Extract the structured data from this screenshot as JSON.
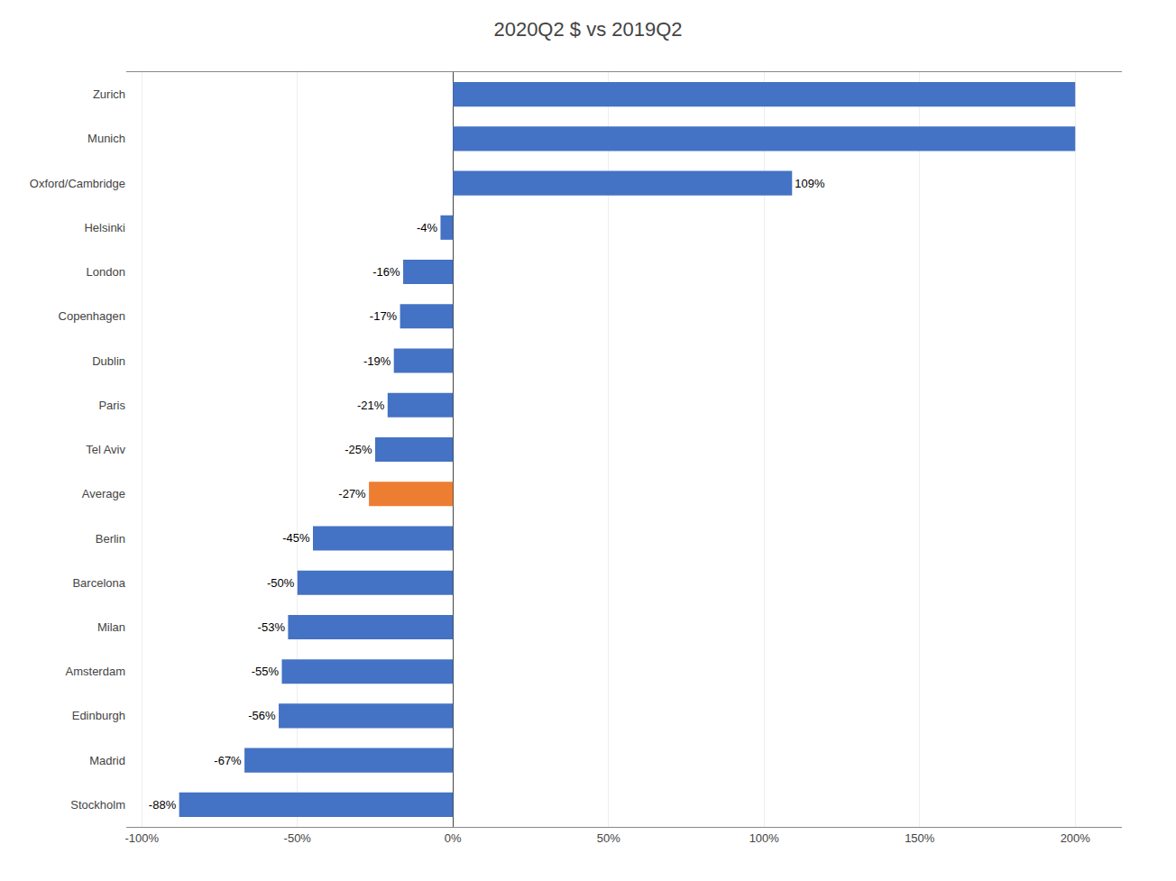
{
  "chart_data": {
    "type": "bar",
    "orientation": "horizontal",
    "title": "2020Q2 $ vs 2019Q2",
    "categories": [
      "Stockholm",
      "Madrid",
      "Edinburgh",
      "Amsterdam",
      "Milan",
      "Barcelona",
      "Berlin",
      "Average",
      "Tel Aviv",
      "Paris",
      "Dublin",
      "Copenhagen",
      "London",
      "Helsinki",
      "Oxford/Cambridge",
      "Munich",
      "Zurich"
    ],
    "values": [
      -88,
      -67,
      -56,
      -55,
      -53,
      -50,
      -45,
      -27,
      -25,
      -21,
      -19,
      -17,
      -16,
      -4,
      109,
      200,
      200
    ],
    "value_labels": [
      "-88%",
      "-67%",
      "-56%",
      "-55%",
      "-53%",
      "-50%",
      "-45%",
      "-27%",
      "-25%",
      "-21%",
      "-19%",
      "-17%",
      "-16%",
      "-4%",
      "109%",
      null,
      null
    ],
    "data_labels": true,
    "colors": [
      "#4472C4",
      "#4472C4",
      "#4472C4",
      "#4472C4",
      "#4472C4",
      "#4472C4",
      "#4472C4",
      "#ED7D31",
      "#4472C4",
      "#4472C4",
      "#4472C4",
      "#4472C4",
      "#4472C4",
      "#4472C4",
      "#4472C4",
      "#4472C4",
      "#4472C4"
    ],
    "xlim": [
      -105,
      215
    ],
    "xticks": [
      {
        "value": -100,
        "label": "-100%"
      },
      {
        "value": -50,
        "label": "-50%"
      },
      {
        "value": 0,
        "label": "0%"
      },
      {
        "value": 50,
        "label": "50%"
      },
      {
        "value": 100,
        "label": "100%"
      },
      {
        "value": 150,
        "label": "150%"
      },
      {
        "value": 200,
        "label": "200%"
      }
    ],
    "grid": true
  }
}
